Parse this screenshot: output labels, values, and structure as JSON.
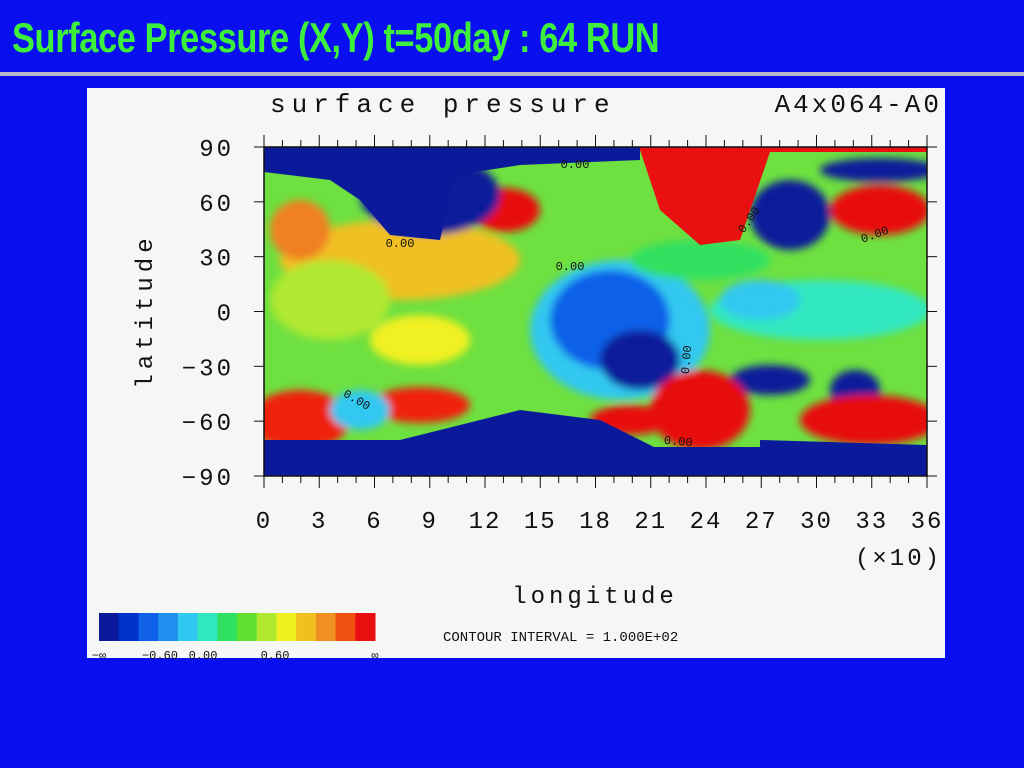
{
  "slide": {
    "title": "Surface Pressure (X,Y) t=50day : 64 RUN"
  },
  "figure": {
    "title": "surface pressure",
    "run": "A4x064-A0",
    "y_label": "latitude",
    "y_ticks": [
      "90",
      "60",
      "30",
      "0",
      "−30",
      "−60",
      "−90"
    ],
    "x_ticks": [
      "0",
      "3",
      "6",
      "9",
      "12",
      "15",
      "18",
      "21",
      "24",
      "27",
      "30",
      "33",
      "36"
    ],
    "x_multiplier": "(×10)",
    "x_label": "longitude",
    "contour_labels": [
      "0.00",
      "0.00",
      "0.00",
      "0.00",
      "0.00",
      "0.00",
      "0.00",
      "0.00"
    ],
    "colorbar_labels": [
      "−∞",
      "−0.60",
      "0.00",
      "0.60",
      "∞"
    ],
    "contour_interval": "CONTOUR INTERVAL = 1.000E+02"
  }
}
